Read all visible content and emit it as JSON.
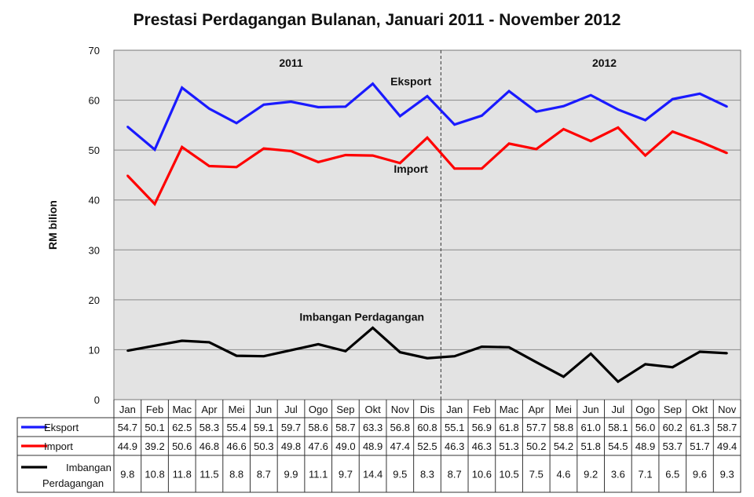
{
  "chart_data": {
    "type": "line",
    "title": "Prestasi Perdagangan Bulanan, Januari 2011 - November 2012",
    "ylabel": "RM bilion",
    "ylim": [
      0,
      70
    ],
    "yticks": [
      0,
      10,
      20,
      30,
      40,
      50,
      60,
      70
    ],
    "grid": true,
    "legend": "table-left",
    "year_labels": [
      "2011",
      "2012"
    ],
    "categories": [
      "Jan",
      "Feb",
      "Mac",
      "Apr",
      "Mei",
      "Jun",
      "Jul",
      "Ogo",
      "Sep",
      "Okt",
      "Nov",
      "Dis",
      "Jan",
      "Feb",
      "Mac",
      "Apr",
      "Mei",
      "Jun",
      "Jul",
      "Ogo",
      "Sep",
      "Okt",
      "Nov"
    ],
    "series": [
      {
        "name": "Eksport",
        "label": "Eksport",
        "color": "#1a1aff",
        "values": [
          54.7,
          50.1,
          62.5,
          58.3,
          55.4,
          59.1,
          59.7,
          58.6,
          58.7,
          63.3,
          56.8,
          60.8,
          55.1,
          56.9,
          61.8,
          57.7,
          58.8,
          61.0,
          58.1,
          56.0,
          60.2,
          61.3,
          58.7
        ]
      },
      {
        "name": "Import",
        "label": "Import",
        "color": "#ff0000",
        "values": [
          44.9,
          39.2,
          50.6,
          46.8,
          46.6,
          50.3,
          49.8,
          47.6,
          49.0,
          48.9,
          47.4,
          52.5,
          46.3,
          46.3,
          51.3,
          50.2,
          54.2,
          51.8,
          54.5,
          48.9,
          53.7,
          51.7,
          49.4
        ]
      },
      {
        "name": "Imbangan Perdagangan",
        "label": "Imbangan Perdagangan",
        "color": "#000000",
        "values": [
          9.8,
          10.8,
          11.8,
          11.5,
          8.8,
          8.7,
          9.9,
          11.1,
          9.7,
          14.4,
          9.5,
          8.3,
          8.7,
          10.6,
          10.5,
          7.5,
          4.6,
          9.2,
          3.6,
          7.1,
          6.5,
          9.6,
          9.3
        ]
      }
    ],
    "table_legend": [
      "Eksport",
      "Import",
      "Imbangan",
      "Perdagangan"
    ]
  }
}
